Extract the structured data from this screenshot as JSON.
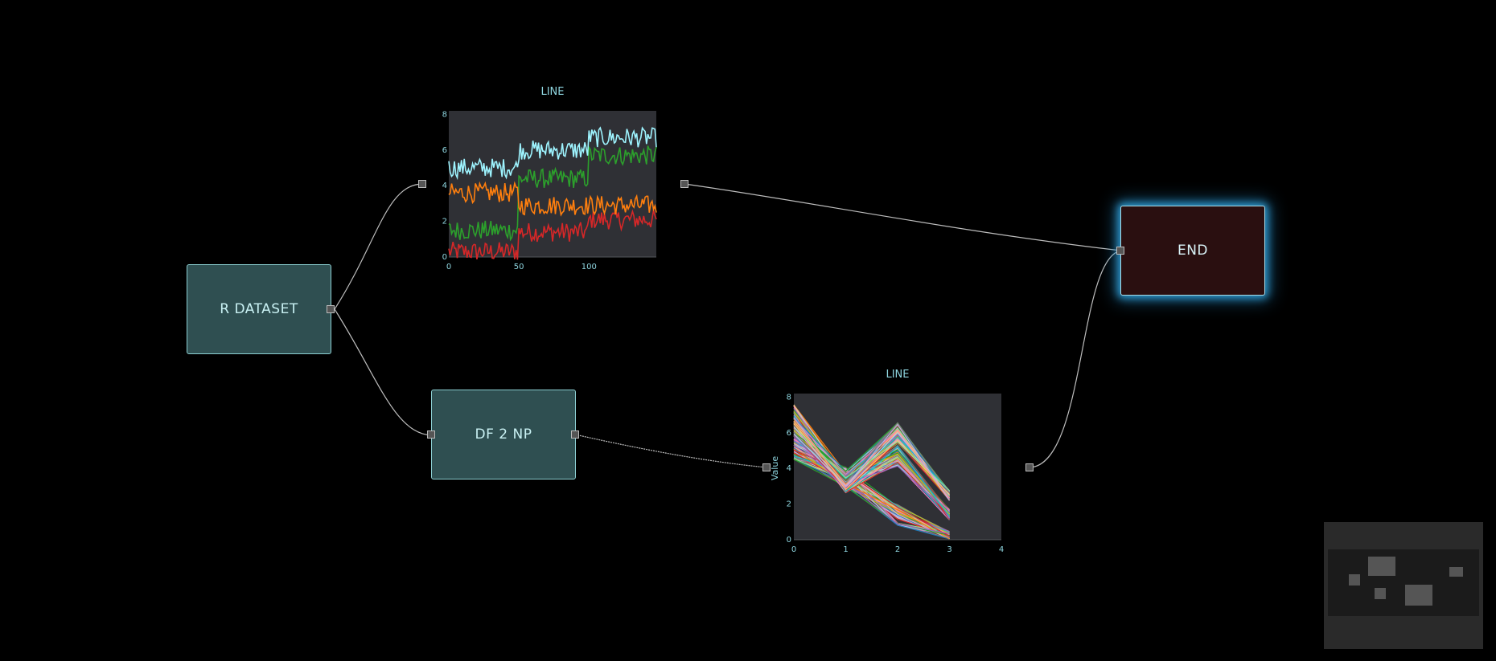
{
  "nodes": {
    "r_dataset": {
      "label": "R DATASET"
    },
    "df2np": {
      "label": "DF 2 NP"
    },
    "end": {
      "label": "END"
    },
    "line_top": {
      "label": "LINE"
    },
    "line_bottom": {
      "label": "LINE"
    }
  },
  "colors": {
    "canvas": "#000000",
    "node_teal": "#2f4f51",
    "node_end": "#2a0f10",
    "end_glow": "#2e9ad0",
    "chart_bg": "#2f3035",
    "wire": "#bdbdbd"
  },
  "chart_data": [
    {
      "type": "line",
      "title": "LINE",
      "xlim": [
        0,
        148
      ],
      "ylim": [
        0,
        8.2
      ],
      "xticks": [
        "0",
        "50",
        "100"
      ],
      "yticks": [
        "0",
        "2",
        "4",
        "6",
        "8"
      ],
      "series_approx": [
        {
          "color": "#d62728",
          "segments": [
            {
              "x": [
                0,
                49
              ],
              "mean": 0.3
            },
            {
              "x": [
                50,
                99
              ],
              "mean": 1.4
            },
            {
              "x": [
                100,
                148
              ],
              "mean": 2.1
            }
          ]
        },
        {
          "color": "#2ca02c",
          "segments": [
            {
              "x": [
                0,
                49
              ],
              "mean": 1.5
            },
            {
              "x": [
                50,
                99
              ],
              "mean": 4.4
            },
            {
              "x": [
                100,
                148
              ],
              "mean": 5.7
            }
          ]
        },
        {
          "color": "#ff7f0e",
          "segments": [
            {
              "x": [
                0,
                49
              ],
              "mean": 3.6
            },
            {
              "x": [
                50,
                99
              ],
              "mean": 2.9
            },
            {
              "x": [
                100,
                148
              ],
              "mean": 2.9
            }
          ]
        },
        {
          "color": "#9ef4ff",
          "segments": [
            {
              "x": [
                0,
                49
              ],
              "mean": 5.0
            },
            {
              "x": [
                50,
                99
              ],
              "mean": 6.0
            },
            {
              "x": [
                100,
                148
              ],
              "mean": 6.7
            }
          ]
        }
      ]
    },
    {
      "type": "line",
      "title": "LINE",
      "ylabel": "Value",
      "xlim": [
        0,
        4
      ],
      "ylim": [
        0,
        8.2
      ],
      "xticks": [
        "0",
        "1",
        "2",
        "3",
        "4"
      ],
      "yticks": [
        "0",
        "2",
        "4",
        "6",
        "8"
      ],
      "x": [
        0,
        1,
        2,
        3
      ],
      "series_groups_approx": [
        {
          "values": [
            5.1,
            3.5,
            1.4,
            0.2
          ],
          "count": 50
        },
        {
          "values": [
            7.0,
            3.2,
            4.7,
            1.4
          ],
          "count": 50
        },
        {
          "values": [
            6.3,
            3.3,
            6.0,
            2.5
          ],
          "count": 50
        }
      ]
    }
  ],
  "minimap": {
    "label": ""
  }
}
